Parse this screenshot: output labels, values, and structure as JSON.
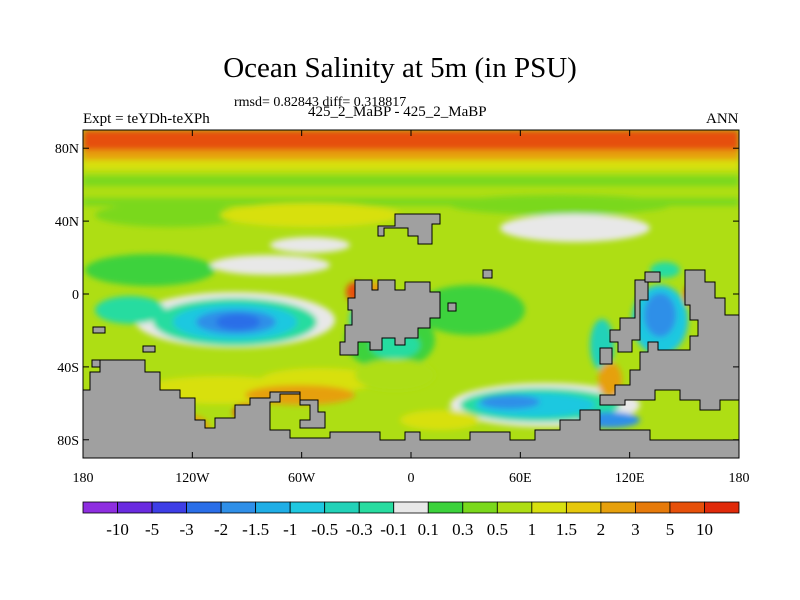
{
  "chart_data": {
    "type": "heatmap",
    "title": "Ocean Salinity at 5m (in PSU)",
    "stats_text": "rmsd= 0.82843 diff= 0.318817",
    "experiment_text": "Expt = teYDh-teXPh",
    "subtitle": "425_2_MaBP - 425_2_MaBP",
    "season": "ANN",
    "x_ticks": [
      {
        "value": -180,
        "label": "180"
      },
      {
        "value": -120,
        "label": "120W"
      },
      {
        "value": -60,
        "label": "60W"
      },
      {
        "value": 0,
        "label": "0"
      },
      {
        "value": 60,
        "label": "60E"
      },
      {
        "value": 120,
        "label": "120E"
      },
      {
        "value": 180,
        "label": "180"
      }
    ],
    "y_ticks": [
      {
        "value": 80,
        "label": "80N"
      },
      {
        "value": 40,
        "label": "40N"
      },
      {
        "value": 0,
        "label": "0"
      },
      {
        "value": -40,
        "label": "40S"
      },
      {
        "value": -80,
        "label": "80S"
      }
    ],
    "xlim": [
      -180,
      180
    ],
    "ylim": [
      -90,
      90
    ],
    "colorbar": {
      "boundary_labels": [
        "-10",
        "-5",
        "-3",
        "-2",
        "-1.5",
        "-1",
        "-0.5",
        "-0.3",
        "-0.1",
        "0.1",
        "0.3",
        "0.5",
        "1",
        "1.5",
        "2",
        "3",
        "5",
        "10"
      ],
      "colors": [
        "#8e2ee0",
        "#6a2be0",
        "#3e3ee6",
        "#2a6ee8",
        "#2f8fe8",
        "#1faee6",
        "#1fc8e0",
        "#22d2b8",
        "#28dca0",
        "#e8e8e8",
        "#3cd23c",
        "#7ad81c",
        "#aede14",
        "#d8e010",
        "#e6c80c",
        "#e6a00c",
        "#e67a0a",
        "#e6500a",
        "#e02a0a"
      ]
    },
    "land_color": "#a0a0a0",
    "ocean_base_color": "#aede14"
  }
}
